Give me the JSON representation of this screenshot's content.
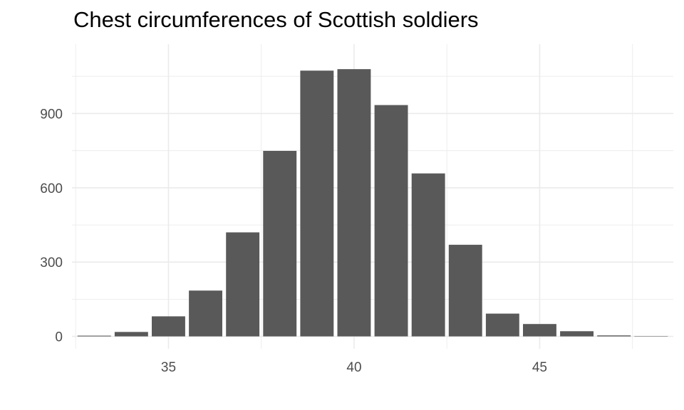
{
  "chart_data": {
    "type": "bar",
    "title": "Chest circumferences of Scottish soldiers",
    "xlabel": "",
    "ylabel": "",
    "x": [
      33,
      34,
      35,
      36,
      37,
      38,
      39,
      40,
      41,
      42,
      43,
      44,
      45,
      46,
      47,
      48
    ],
    "values": [
      3,
      18,
      81,
      185,
      420,
      749,
      1073,
      1079,
      934,
      658,
      370,
      92,
      50,
      21,
      4,
      1
    ],
    "xlim": [
      32.4,
      48.6
    ],
    "ylim": [
      -50,
      1180
    ],
    "xticks": [
      35,
      40,
      45
    ],
    "yticks": [
      0,
      300,
      600,
      900
    ],
    "bar_color": "#595959",
    "grid": true,
    "grid_color": "#ebebeb",
    "legend": "none"
  }
}
